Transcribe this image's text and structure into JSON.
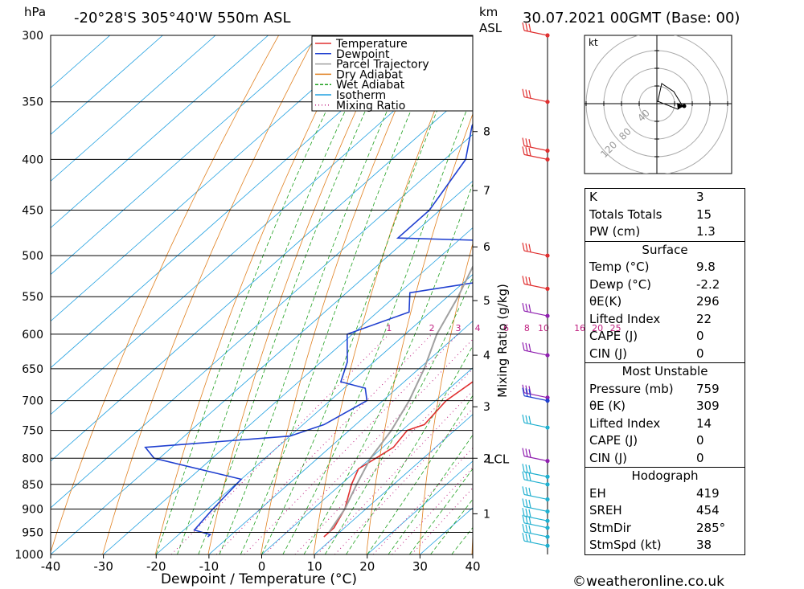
{
  "header": {
    "location": "-20°28'S 305°40'W 550m ASL",
    "datetime": "30.07.2021 00GMT (Base: 00)",
    "pressure_unit": "hPa",
    "height_unit_1": "km",
    "height_unit_2": "ASL",
    "footer": "©weatheronline.co.uk"
  },
  "legend": [
    {
      "name": "Temperature",
      "color": "#e03030"
    },
    {
      "name": "Dewpoint",
      "color": "#2040d0"
    },
    {
      "name": "Parcel Trajectory",
      "color": "#a0a0a0"
    },
    {
      "name": "Dry Adiabat",
      "color": "#e08020"
    },
    {
      "name": "Wet Adiabat",
      "color": "#20a020"
    },
    {
      "name": "Isotherm",
      "color": "#20a0e0"
    },
    {
      "name": "Mixing Ratio",
      "color": "#c02080"
    }
  ],
  "chart_data": {
    "type": "line",
    "xlabel": "Dewpoint / Temperature (°C)",
    "ylabel": "",
    "xlim": [
      -40,
      40
    ],
    "pressure_levels": [
      300,
      350,
      400,
      450,
      500,
      550,
      600,
      650,
      700,
      750,
      800,
      850,
      900,
      950,
      1000
    ],
    "x_ticks": [
      -40,
      -30,
      -20,
      -10,
      0,
      10,
      20,
      30,
      40
    ],
    "x_tick_labels": [
      "-40",
      "-30",
      "-20",
      "-10",
      "0",
      "10",
      "20",
      "30",
      "40"
    ],
    "height_km_ticks": [
      {
        "km": "1",
        "p": 910
      },
      {
        "km": "2",
        "p": 800
      },
      {
        "km": "3",
        "p": 710
      },
      {
        "km": "4",
        "p": 630
      },
      {
        "km": "5",
        "p": 555
      },
      {
        "km": "6",
        "p": 490
      },
      {
        "km": "7",
        "p": 430
      },
      {
        "km": "8",
        "p": 375
      }
    ],
    "lcl_label": "LCL",
    "lcl_pressure": 800,
    "mixing_ratio_axis_label": "Mixing Ratio (g/kg)",
    "mixing_ratio_values": [
      "1",
      "2",
      "3",
      "4",
      "6",
      "8",
      "10",
      "16",
      "20",
      "25"
    ],
    "series": [
      {
        "name": "Temperature",
        "points": [
          [
            300,
            -26
          ],
          [
            350,
            -20
          ],
          [
            355,
            -21
          ],
          [
            400,
            -13
          ],
          [
            450,
            -8
          ],
          [
            470,
            -7
          ],
          [
            480,
            -9
          ],
          [
            500,
            -7
          ],
          [
            520,
            -4
          ],
          [
            550,
            -4
          ],
          [
            600,
            -2
          ],
          [
            650,
            2
          ],
          [
            670,
            3
          ],
          [
            700,
            2
          ],
          [
            740,
            3
          ],
          [
            750,
            1
          ],
          [
            780,
            2
          ],
          [
            800,
            1
          ],
          [
            820,
            0
          ],
          [
            850,
            2
          ],
          [
            900,
            6
          ],
          [
            940,
            8
          ],
          [
            950,
            8
          ],
          [
            960,
            8
          ]
        ]
      },
      {
        "name": "Dewpoint",
        "points": [
          [
            300,
            -40
          ],
          [
            350,
            -58
          ],
          [
            355,
            -54
          ],
          [
            370,
            -52
          ],
          [
            400,
            -46
          ],
          [
            450,
            -42
          ],
          [
            480,
            -42
          ],
          [
            485,
            -12
          ],
          [
            510,
            -8
          ],
          [
            530,
            -16
          ],
          [
            545,
            -28
          ],
          [
            570,
            -24
          ],
          [
            600,
            -31
          ],
          [
            640,
            -25
          ],
          [
            670,
            -22
          ],
          [
            680,
            -16
          ],
          [
            700,
            -13
          ],
          [
            740,
            -16
          ],
          [
            760,
            -20
          ],
          [
            780,
            -45
          ],
          [
            800,
            -41
          ],
          [
            840,
            -20
          ],
          [
            900,
            -19
          ],
          [
            945,
            -18
          ],
          [
            955,
            -14
          ],
          [
            960,
            -14
          ]
        ]
      },
      {
        "name": "Parcel Trajectory",
        "points": [
          [
            310,
            -50
          ],
          [
            350,
            -44
          ],
          [
            400,
            -34
          ],
          [
            450,
            -28
          ],
          [
            500,
            -23
          ],
          [
            550,
            -18
          ],
          [
            600,
            -14
          ],
          [
            650,
            -9
          ],
          [
            700,
            -5
          ],
          [
            750,
            -2
          ],
          [
            800,
            0
          ],
          [
            850,
            3
          ],
          [
            900,
            6
          ],
          [
            950,
            8
          ]
        ]
      }
    ]
  },
  "hodograph": {
    "unit_label": "kt",
    "ring_labels": [
      "40",
      "80",
      "120"
    ]
  },
  "indices": {
    "general": [
      {
        "label": "K",
        "value": "3"
      },
      {
        "label": "Totals Totals",
        "value": "15"
      },
      {
        "label": "PW (cm)",
        "value": "1.3"
      }
    ],
    "surface_title": "Surface",
    "surface": [
      {
        "label": "Temp (°C)",
        "value": "9.8"
      },
      {
        "label": "Dewp (°C)",
        "value": "-2.2"
      },
      {
        "label": "θE(K)",
        "value": "296"
      },
      {
        "label": "Lifted Index",
        "value": "22"
      },
      {
        "label": "CAPE (J)",
        "value": "0"
      },
      {
        "label": "CIN (J)",
        "value": "0"
      }
    ],
    "unstable_title": "Most Unstable",
    "unstable": [
      {
        "label": "Pressure (mb)",
        "value": "759"
      },
      {
        "label": "θE (K)",
        "value": "309"
      },
      {
        "label": "Lifted Index",
        "value": "14"
      },
      {
        "label": "CAPE (J)",
        "value": "0"
      },
      {
        "label": "CIN (J)",
        "value": "0"
      }
    ],
    "hodo_title": "Hodograph",
    "hodo": [
      {
        "label": "EH",
        "value": "419"
      },
      {
        "label": "SREH",
        "value": "454"
      },
      {
        "label": "StmDir",
        "value": "285°"
      },
      {
        "label": "StmSpd (kt)",
        "value": "38"
      }
    ]
  }
}
